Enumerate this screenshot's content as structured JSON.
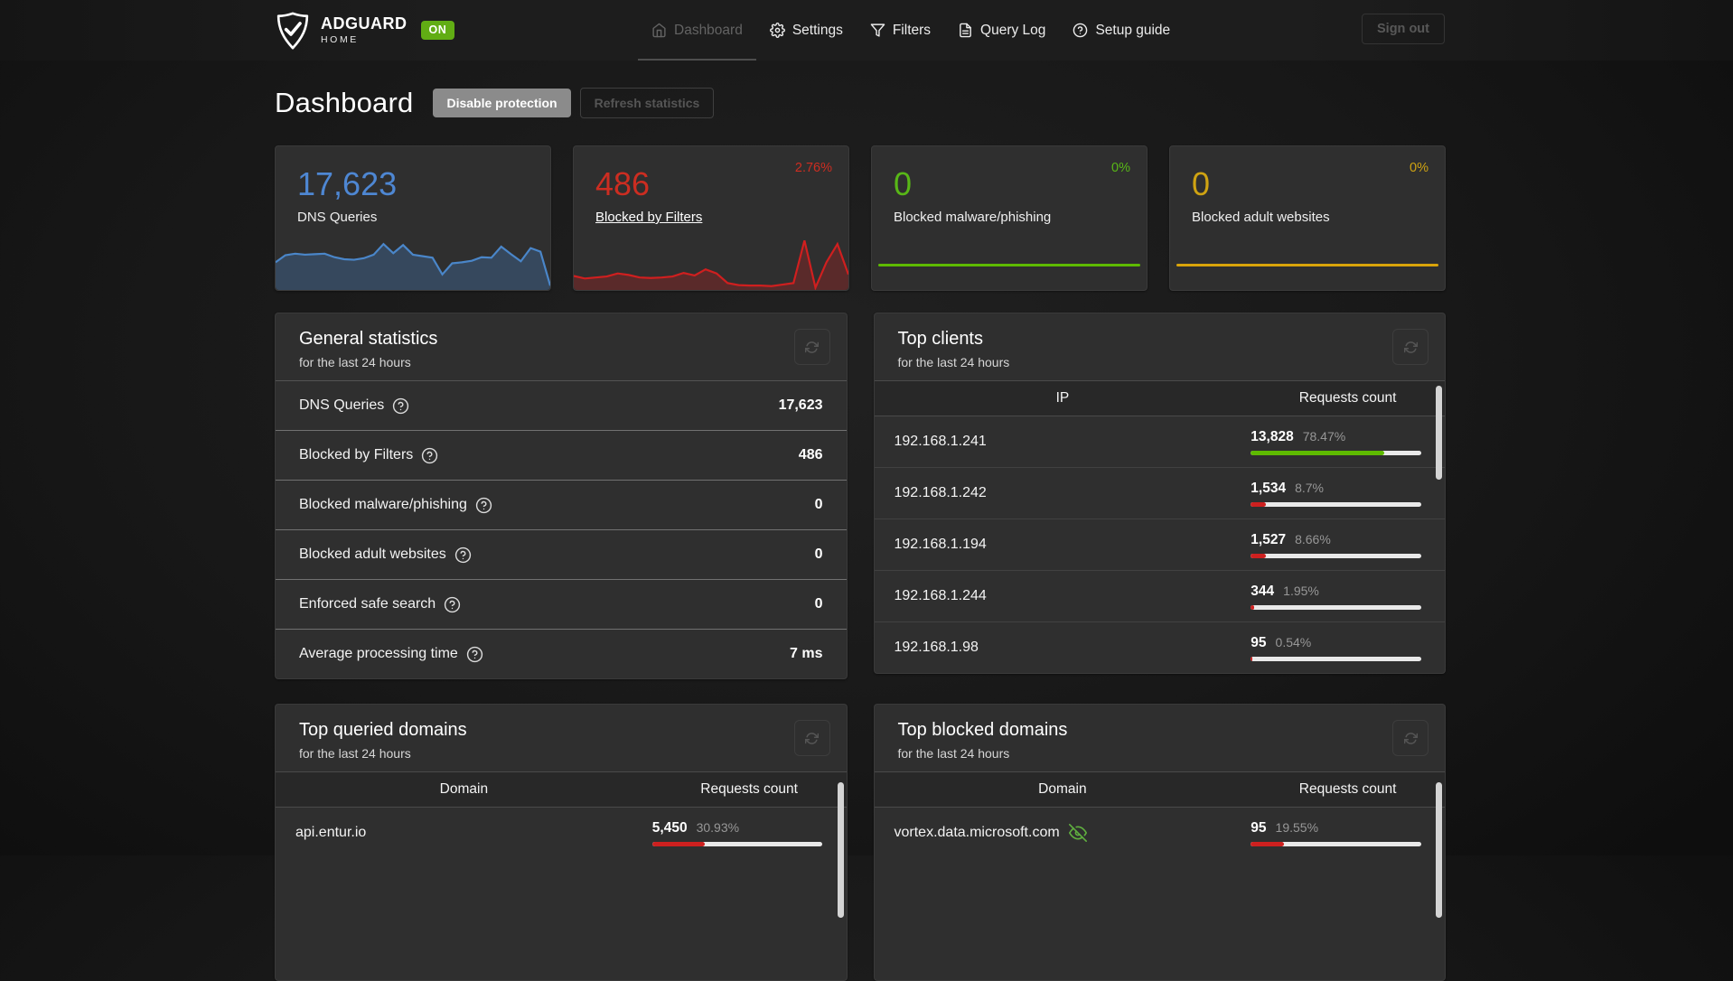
{
  "nav": {
    "brand": {
      "name": "ADGUARD",
      "sub": "HOME",
      "status_badge": "ON"
    },
    "items": [
      {
        "label": "Dashboard",
        "icon": "home-icon",
        "active": true
      },
      {
        "label": "Settings",
        "icon": "gear-icon",
        "active": false
      },
      {
        "label": "Filters",
        "icon": "funnel-icon",
        "active": false
      },
      {
        "label": "Query Log",
        "icon": "query-log-icon",
        "active": false
      },
      {
        "label": "Setup guide",
        "icon": "help-circle-icon",
        "active": false
      }
    ],
    "sign_out_label": "Sign out"
  },
  "header": {
    "title": "Dashboard",
    "disable_protection_label": "Disable protection",
    "refresh_statistics_label": "Refresh statistics"
  },
  "stat_cards": [
    {
      "id": "dns-queries",
      "value": "17,623",
      "label": "DNS Queries",
      "percent": "",
      "accent": "#4e87d3",
      "label_is_link": false
    },
    {
      "id": "blocked-by-filters",
      "value": "486",
      "label": "Blocked by Filters",
      "percent": "2.76%",
      "accent": "#cc2d21",
      "label_is_link": true
    },
    {
      "id": "blocked-malware-phishing",
      "value": "0",
      "label": "Blocked malware/phishing",
      "percent": "0%",
      "accent": "#58b717",
      "label_is_link": false
    },
    {
      "id": "blocked-adult-websites",
      "value": "0",
      "label": "Blocked adult websites",
      "percent": "0%",
      "accent": "#cfa312",
      "label_is_link": false
    }
  ],
  "chart_data": [
    {
      "id": "dns-queries-sparkline",
      "type": "area",
      "color": "#4a86c9",
      "fill": "rgba(74,134,201,0.30)",
      "values": [
        52,
        66,
        69,
        67,
        68,
        69,
        62,
        58,
        57,
        60,
        67,
        88,
        70,
        86,
        67,
        64,
        61,
        28,
        50,
        52,
        55,
        62,
        61,
        83,
        68,
        54,
        80,
        73,
        6
      ]
    },
    {
      "id": "blocked-filters-sparkline",
      "type": "area",
      "color": "#d01f1f",
      "fill": "rgba(205,32,31,0.28)",
      "values": [
        25,
        20,
        22,
        24,
        30,
        27,
        22,
        21,
        22,
        24,
        31,
        26,
        38,
        30,
        11,
        7,
        6,
        6,
        5,
        8,
        11,
        95,
        2,
        52,
        88,
        28
      ]
    },
    {
      "id": "blocked-malware-sparkline",
      "type": "line",
      "style": "flat",
      "color": "#5eba00",
      "values": [
        0,
        0
      ]
    },
    {
      "id": "blocked-adult-sparkline",
      "type": "line",
      "style": "flat",
      "color": "#d9a40a",
      "values": [
        0,
        0
      ]
    }
  ],
  "panels": {
    "general_statistics": {
      "title": "General statistics",
      "subtitle": "for the last 24 hours",
      "rows": [
        {
          "label": "DNS Queries",
          "value": "17,623"
        },
        {
          "label": "Blocked by Filters",
          "value": "486"
        },
        {
          "label": "Blocked malware/phishing",
          "value": "0"
        },
        {
          "label": "Blocked adult websites",
          "value": "0"
        },
        {
          "label": "Enforced safe search",
          "value": "0"
        },
        {
          "label": "Average processing time",
          "value": "7 ms"
        }
      ]
    },
    "top_clients": {
      "title": "Top clients",
      "subtitle": "for the last 24 hours",
      "columns": [
        "IP",
        "Requests count"
      ],
      "rows": [
        {
          "ip": "192.168.1.241",
          "count": "13,828",
          "percent": "78.47%",
          "bar_pct": 78.47,
          "bar_color": "#5eba00"
        },
        {
          "ip": "192.168.1.242",
          "count": "1,534",
          "percent": "8.7%",
          "bar_pct": 8.7,
          "bar_color": "#cd201f"
        },
        {
          "ip": "192.168.1.194",
          "count": "1,527",
          "percent": "8.66%",
          "bar_pct": 8.66,
          "bar_color": "#cd201f"
        },
        {
          "ip": "192.168.1.244",
          "count": "344",
          "percent": "1.95%",
          "bar_pct": 1.95,
          "bar_color": "#cd201f"
        },
        {
          "ip": "192.168.1.98",
          "count": "95",
          "percent": "0.54%",
          "bar_pct": 0.54,
          "bar_color": "#cd201f"
        }
      ]
    },
    "top_queried_domains": {
      "title": "Top queried domains",
      "subtitle": "for the last 24 hours",
      "columns": [
        "Domain",
        "Requests count"
      ],
      "rows": [
        {
          "domain": "api.entur.io",
          "count": "5,450",
          "percent": "30.93%",
          "bar_pct": 30.93,
          "bar_color": "#cd201f"
        }
      ]
    },
    "top_blocked_domains": {
      "title": "Top blocked domains",
      "subtitle": "for the last 24 hours",
      "columns": [
        "Domain",
        "Requests count"
      ],
      "rows": [
        {
          "domain": "vortex.data.microsoft.com",
          "icon": "eye-slash-icon",
          "count": "95",
          "percent": "19.55%",
          "bar_pct": 19.55,
          "bar_color": "#cd201f"
        }
      ]
    }
  },
  "colors": {
    "accent_blue": "#4e87d3",
    "accent_red": "#cc2d21",
    "accent_green": "#5eba00",
    "accent_yellow": "#cfa312",
    "badge_green": "#61ad14"
  }
}
